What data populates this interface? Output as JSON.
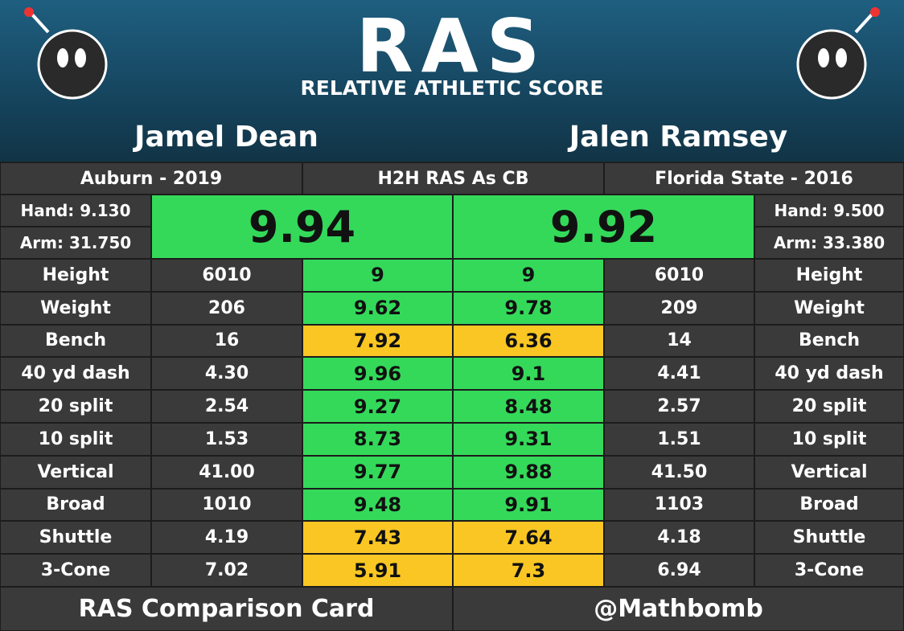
{
  "header": {
    "logo": "RAS",
    "subtitle": "RELATIVE ATHLETIC SCORE"
  },
  "players": [
    {
      "name": "Jamel Dean",
      "school": "Auburn - 2019",
      "hand": "Hand: 9.130",
      "arm": "Arm: 31.750",
      "ras": "9.94",
      "ras_color": "#34d95a"
    },
    {
      "name": "Jalen Ramsey",
      "school": "Florida State - 2016",
      "hand": "Hand: 9.500",
      "arm": "Arm: 33.380",
      "ras": "9.92",
      "ras_color": "#34d95a"
    }
  ],
  "center_label": "H2H RAS As CB",
  "metrics": [
    {
      "label": "Height",
      "left_value": "6010",
      "left_score": "9",
      "left_color": "#34d95a",
      "right_score": "9",
      "right_color": "#34d95a",
      "right_value": "6010"
    },
    {
      "label": "Weight",
      "left_value": "206",
      "left_score": "9.62",
      "left_color": "#34d95a",
      "right_score": "9.78",
      "right_color": "#34d95a",
      "right_value": "209"
    },
    {
      "label": "Bench",
      "left_value": "16",
      "left_score": "7.92",
      "left_color": "#f9c623",
      "right_score": "6.36",
      "right_color": "#f9c623",
      "right_value": "14"
    },
    {
      "label": "40 yd dash",
      "left_value": "4.30",
      "left_score": "9.96",
      "left_color": "#34d95a",
      "right_score": "9.1",
      "right_color": "#34d95a",
      "right_value": "4.41"
    },
    {
      "label": "20 split",
      "left_value": "2.54",
      "left_score": "9.27",
      "left_color": "#34d95a",
      "right_score": "8.48",
      "right_color": "#34d95a",
      "right_value": "2.57"
    },
    {
      "label": "10 split",
      "left_value": "1.53",
      "left_score": "8.73",
      "left_color": "#34d95a",
      "right_score": "9.31",
      "right_color": "#34d95a",
      "right_value": "1.51"
    },
    {
      "label": "Vertical",
      "left_value": "41.00",
      "left_score": "9.77",
      "left_color": "#34d95a",
      "right_score": "9.88",
      "right_color": "#34d95a",
      "right_value": "41.50"
    },
    {
      "label": "Broad",
      "left_value": "1010",
      "left_score": "9.48",
      "left_color": "#34d95a",
      "right_score": "9.91",
      "right_color": "#34d95a",
      "right_value": "1103"
    },
    {
      "label": "Shuttle",
      "left_value": "4.19",
      "left_score": "7.43",
      "left_color": "#f9c623",
      "right_score": "7.64",
      "right_color": "#f9c623",
      "right_value": "4.18"
    },
    {
      "label": "3-Cone",
      "left_value": "7.02",
      "left_score": "5.91",
      "left_color": "#f9c623",
      "right_score": "7.3",
      "right_color": "#f9c623",
      "right_value": "6.94"
    }
  ],
  "footer": {
    "left": "RAS Comparison Card",
    "right": "@Mathbomb"
  }
}
